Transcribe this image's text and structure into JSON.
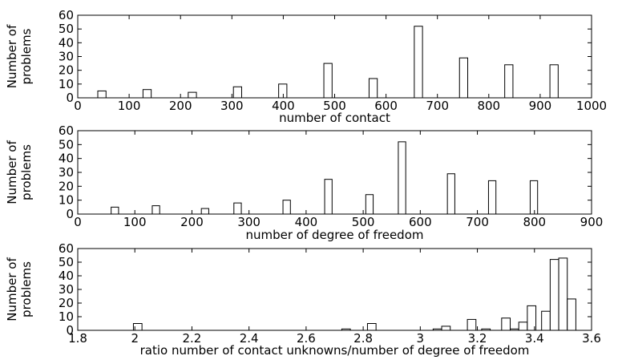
{
  "chart_data": [
    {
      "type": "bar",
      "xlabel": "number of contact",
      "ylabel": [
        "Number of",
        "problems"
      ],
      "xlim": [
        0,
        1000
      ],
      "ylim": [
        0,
        60
      ],
      "xticks": [
        0,
        100,
        200,
        300,
        400,
        500,
        600,
        700,
        800,
        900,
        1000
      ],
      "yticks": [
        0,
        10,
        20,
        30,
        40,
        50,
        60
      ],
      "bar_width": 16,
      "x": [
        47,
        135,
        223,
        311,
        399,
        487,
        575,
        663,
        751,
        839,
        927
      ],
      "values": [
        5,
        6,
        4,
        8,
        10,
        25,
        14,
        52,
        29,
        24,
        24
      ]
    },
    {
      "type": "bar",
      "xlabel": "number of degree of freedom",
      "ylabel": [
        "Number of",
        "problems"
      ],
      "xlim": [
        0,
        900
      ],
      "ylim": [
        0,
        60
      ],
      "xticks": [
        0,
        100,
        200,
        300,
        400,
        500,
        600,
        700,
        800,
        900
      ],
      "yticks": [
        0,
        10,
        20,
        30,
        40,
        50,
        60
      ],
      "bar_width": 13,
      "x": [
        65,
        137,
        223,
        280,
        366,
        439,
        511,
        568,
        654,
        726,
        799
      ],
      "values": [
        5,
        6,
        4,
        8,
        10,
        25,
        14,
        52,
        29,
        24,
        24
      ]
    },
    {
      "type": "bar",
      "xlabel": "ratio number of contact unknowns/number of degree of freedom",
      "ylabel": [
        "Number of",
        "problems"
      ],
      "xlim": [
        1.8,
        3.6
      ],
      "ylim": [
        0,
        60
      ],
      "xticks": [
        1.8,
        2,
        2.2,
        2.4,
        2.6,
        2.8,
        3,
        3.2,
        3.4,
        3.6
      ],
      "yticks": [
        0,
        10,
        20,
        30,
        40,
        50,
        60
      ],
      "bar_width": 0.03,
      "x": [
        2.01,
        2.74,
        2.83,
        3.06,
        3.09,
        3.18,
        3.23,
        3.3,
        3.33,
        3.36,
        3.39,
        3.44,
        3.47,
        3.5,
        3.53
      ],
      "values": [
        5,
        1,
        5,
        1,
        3,
        8,
        1,
        9,
        1,
        6,
        18,
        14,
        52,
        53,
        23
      ]
    }
  ]
}
